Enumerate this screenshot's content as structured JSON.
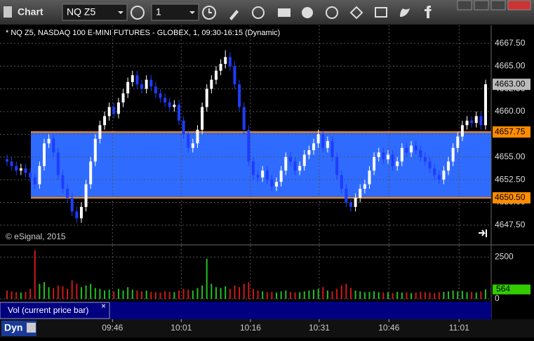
{
  "toolbar": {
    "title": "Chart",
    "symbol": "NQ Z5",
    "interval": "1"
  },
  "chart_data": {
    "type": "candlestick",
    "title": "* NQ Z5, NASDAQ 100 E-MINI FUTURES - GLOBEX, 1, 09:30-16:15 (Dynamic)",
    "copyright": "© eSignal, 2015",
    "up_color": "#ffffff",
    "down_color": "#1e3cff",
    "grid": true,
    "ylim": [
      4645.4,
      4669.5
    ],
    "yticks": [
      {
        "value": 4647.5,
        "label": "4647.50"
      },
      {
        "value": 4650,
        "label": "4650.00"
      },
      {
        "value": 4652.5,
        "label": "4652.50"
      },
      {
        "value": 4655,
        "label": "4655.00"
      },
      {
        "value": 4657.5,
        "label": "4657.50"
      },
      {
        "value": 4660,
        "label": "4660.00"
      },
      {
        "value": 4662.5,
        "label": "4662.50"
      },
      {
        "value": 4665,
        "label": "4665.00"
      },
      {
        "value": 4667.5,
        "label": "4667.50"
      }
    ],
    "levels": [
      {
        "value": 4657.75,
        "label": "4657.75",
        "color": "#ff8c00"
      },
      {
        "value": 4650.5,
        "label": "4650.50",
        "color": "#ff8c00"
      }
    ],
    "band_color": "#2f6bff",
    "last_price": {
      "value": 4663,
      "label": "4663.00"
    },
    "xlim": [
      -1,
      104
    ],
    "xticks": [
      {
        "value": 22.7,
        "label": "09:46"
      },
      {
        "value": 37.5,
        "label": "10:01"
      },
      {
        "value": 52.4,
        "label": "10:16"
      },
      {
        "value": 67.2,
        "label": "10:31"
      },
      {
        "value": 82.2,
        "label": "10:46"
      },
      {
        "value": 97.3,
        "label": "11:01"
      }
    ],
    "candles": [
      [
        4654.75,
        4655.25,
        4654,
        4654.5
      ],
      [
        4654.5,
        4655,
        4653.5,
        4654
      ],
      [
        4654,
        4654.5,
        4653,
        4653.5
      ],
      [
        4653.5,
        4654.25,
        4653,
        4653.75
      ],
      [
        4653.75,
        4654.25,
        4652.75,
        4653.25
      ],
      [
        4653.25,
        4653.75,
        4652.25,
        4652.75
      ],
      [
        4652.75,
        4653.25,
        4651.5,
        4652
      ],
      [
        4652,
        4654.5,
        4651.5,
        4654
      ],
      [
        4654,
        4657,
        4653.5,
        4656.5
      ],
      [
        4656.5,
        4657.5,
        4656,
        4657
      ],
      [
        4657,
        4657.5,
        4655,
        4655.5
      ],
      [
        4655.5,
        4656,
        4652.5,
        4653
      ],
      [
        4653,
        4653.5,
        4651,
        4651.5
      ],
      [
        4651.5,
        4652,
        4650,
        4650.5
      ],
      [
        4650.5,
        4651,
        4648.5,
        4649
      ],
      [
        4649,
        4649.5,
        4647.75,
        4648.25
      ],
      [
        4648.25,
        4650,
        4647.75,
        4649.5
      ],
      [
        4649.5,
        4652.5,
        4649,
        4652
      ],
      [
        4652,
        4655,
        4651.5,
        4654.5
      ],
      [
        4654.5,
        4657.5,
        4654,
        4657
      ],
      [
        4657,
        4659,
        4656.5,
        4658.5
      ],
      [
        4658.5,
        4660,
        4658,
        4659.5
      ],
      [
        4659.5,
        4661,
        4659,
        4660.5
      ],
      [
        4660.5,
        4661,
        4659.25,
        4659.75
      ],
      [
        4659.75,
        4661.5,
        4659.25,
        4661
      ],
      [
        4661,
        4662.5,
        4660.5,
        4662
      ],
      [
        4662,
        4663.75,
        4661.5,
        4663.25
      ],
      [
        4663.25,
        4664.5,
        4662.75,
        4664
      ],
      [
        4664,
        4664.5,
        4662.5,
        4663
      ],
      [
        4663,
        4663.5,
        4662,
        4662.5
      ],
      [
        4662.5,
        4664,
        4662,
        4663.5
      ],
      [
        4663.5,
        4664,
        4662.25,
        4662.75
      ],
      [
        4662.75,
        4663.25,
        4661.5,
        4662
      ],
      [
        4662,
        4662.5,
        4661,
        4661.5
      ],
      [
        4661.5,
        4662,
        4660.5,
        4661
      ],
      [
        4661,
        4661.5,
        4660,
        4660.5
      ],
      [
        4660.5,
        4661.25,
        4660,
        4660.75
      ],
      [
        4660.75,
        4661.25,
        4658.5,
        4659
      ],
      [
        4659,
        4659.5,
        4657,
        4657.5
      ],
      [
        4657.5,
        4658,
        4655.5,
        4656
      ],
      [
        4656,
        4657,
        4655.5,
        4656.5
      ],
      [
        4656.5,
        4658.5,
        4656,
        4658
      ],
      [
        4658,
        4661,
        4657.5,
        4660.5
      ],
      [
        4660.5,
        4663,
        4660,
        4662.5
      ],
      [
        4662.5,
        4664,
        4662,
        4663.5
      ],
      [
        4663.5,
        4665,
        4663,
        4664.5
      ],
      [
        4664.5,
        4665.75,
        4664,
        4665.25
      ],
      [
        4665.25,
        4666.75,
        4664.75,
        4666
      ],
      [
        4666,
        4666.5,
        4664.5,
        4665
      ],
      [
        4665,
        4665.5,
        4662.5,
        4663
      ],
      [
        4663,
        4663.5,
        4660,
        4660.5
      ],
      [
        4660.5,
        4661,
        4657.5,
        4658
      ],
      [
        4658,
        4658.5,
        4654,
        4654.5
      ],
      [
        4654.5,
        4655,
        4652.5,
        4653
      ],
      [
        4653,
        4653.5,
        4652.25,
        4652.75
      ],
      [
        4652.75,
        4654,
        4652.25,
        4653.5
      ],
      [
        4653.5,
        4654,
        4652,
        4652.5
      ],
      [
        4652.5,
        4653,
        4651.25,
        4651.75
      ],
      [
        4651.75,
        4652.75,
        4651.25,
        4652.25
      ],
      [
        4652.25,
        4654,
        4651.75,
        4653.5
      ],
      [
        4653.5,
        4655.5,
        4653,
        4655
      ],
      [
        4655,
        4655.5,
        4654,
        4654.5
      ],
      [
        4654.5,
        4655,
        4653,
        4653.5
      ],
      [
        4653.5,
        4654.5,
        4653,
        4654
      ],
      [
        4654,
        4655.75,
        4653.5,
        4655.25
      ],
      [
        4655.25,
        4656.25,
        4654.75,
        4655.75
      ],
      [
        4655.75,
        4657,
        4655.25,
        4656.5
      ],
      [
        4656.5,
        4658,
        4656,
        4657.5
      ],
      [
        4657.5,
        4658,
        4655.5,
        4656
      ],
      [
        4656,
        4657.25,
        4655.5,
        4656.75
      ],
      [
        4656.75,
        4657.25,
        4654.5,
        4655
      ],
      [
        4655,
        4655.5,
        4652.5,
        4653
      ],
      [
        4653,
        4653.5,
        4651,
        4651.5
      ],
      [
        4651.5,
        4652,
        4649.5,
        4650
      ],
      [
        4650,
        4650.5,
        4649,
        4649.5
      ],
      [
        4649.5,
        4651,
        4649,
        4650.5
      ],
      [
        4650.5,
        4652,
        4650,
        4651.5
      ],
      [
        4651.5,
        4652.5,
        4651,
        4652
      ],
      [
        4652,
        4654,
        4651.5,
        4653.5
      ],
      [
        4653.5,
        4655.5,
        4653,
        4655
      ],
      [
        4655,
        4656,
        4654.5,
        4655.5
      ],
      [
        4655.5,
        4656,
        4654.25,
        4654.75
      ],
      [
        4654.75,
        4655.75,
        4654.25,
        4655.25
      ],
      [
        4655.25,
        4655.75,
        4653.5,
        4654
      ],
      [
        4654,
        4655,
        4653.5,
        4654.5
      ],
      [
        4654.5,
        4656.5,
        4654,
        4656
      ],
      [
        4656,
        4656.5,
        4655,
        4655.5
      ],
      [
        4655.5,
        4656.75,
        4655,
        4656.25
      ],
      [
        4656.25,
        4656.75,
        4655.25,
        4655.75
      ],
      [
        4655.75,
        4656.25,
        4654.5,
        4655
      ],
      [
        4655,
        4655.5,
        4654,
        4654.5
      ],
      [
        4654.5,
        4655,
        4653.25,
        4653.75
      ],
      [
        4653.75,
        4654.25,
        4652.5,
        4653
      ],
      [
        4653,
        4653.5,
        4652,
        4652.5
      ],
      [
        4652.5,
        4654,
        4652,
        4653.5
      ],
      [
        4653.5,
        4655,
        4653,
        4654.5
      ],
      [
        4654.5,
        4656.5,
        4654,
        4656
      ],
      [
        4656,
        4657.75,
        4655.5,
        4657.25
      ],
      [
        4657.25,
        4659,
        4656.75,
        4658.5
      ],
      [
        4658.5,
        4659.5,
        4658,
        4659
      ],
      [
        4659,
        4659.5,
        4658.25,
        4658.75
      ],
      [
        4658.75,
        4660,
        4658.25,
        4659.5
      ],
      [
        4659.5,
        4660,
        4658,
        4658.5
      ],
      [
        4658.5,
        4663.5,
        4658,
        4663
      ]
    ],
    "volume": {
      "label": "Vol (current price bar)",
      "close": "×",
      "ylim": [
        0,
        3100
      ],
      "yticks": [
        2500,
        0
      ],
      "up_color": "#22c022",
      "down_color": "#d01818",
      "current": 564,
      "current_color": "#33cc00",
      "values": [
        500,
        450,
        400,
        380,
        420,
        600,
        2900,
        900,
        1000,
        700,
        650,
        800,
        750,
        600,
        1100,
        900,
        700,
        800,
        900,
        650,
        600,
        500,
        550,
        450,
        600,
        500,
        700,
        550,
        500,
        450,
        500,
        420,
        400,
        380,
        450,
        420,
        400,
        500,
        600,
        550,
        500,
        650,
        800,
        2400,
        900,
        700,
        650,
        750,
        600,
        800,
        700,
        900,
        1000,
        600,
        500,
        450,
        400,
        420,
        380,
        450,
        500,
        420,
        380,
        400,
        450,
        500,
        550,
        600,
        700,
        500,
        450,
        600,
        800,
        900,
        650,
        500,
        450,
        400,
        420,
        450,
        400,
        380,
        400,
        350,
        420,
        380,
        400,
        350,
        380,
        420,
        400,
        380,
        350,
        400,
        420,
        450,
        500,
        450,
        480,
        400,
        420,
        380,
        450,
        564
      ]
    },
    "mode": "Dyn"
  }
}
